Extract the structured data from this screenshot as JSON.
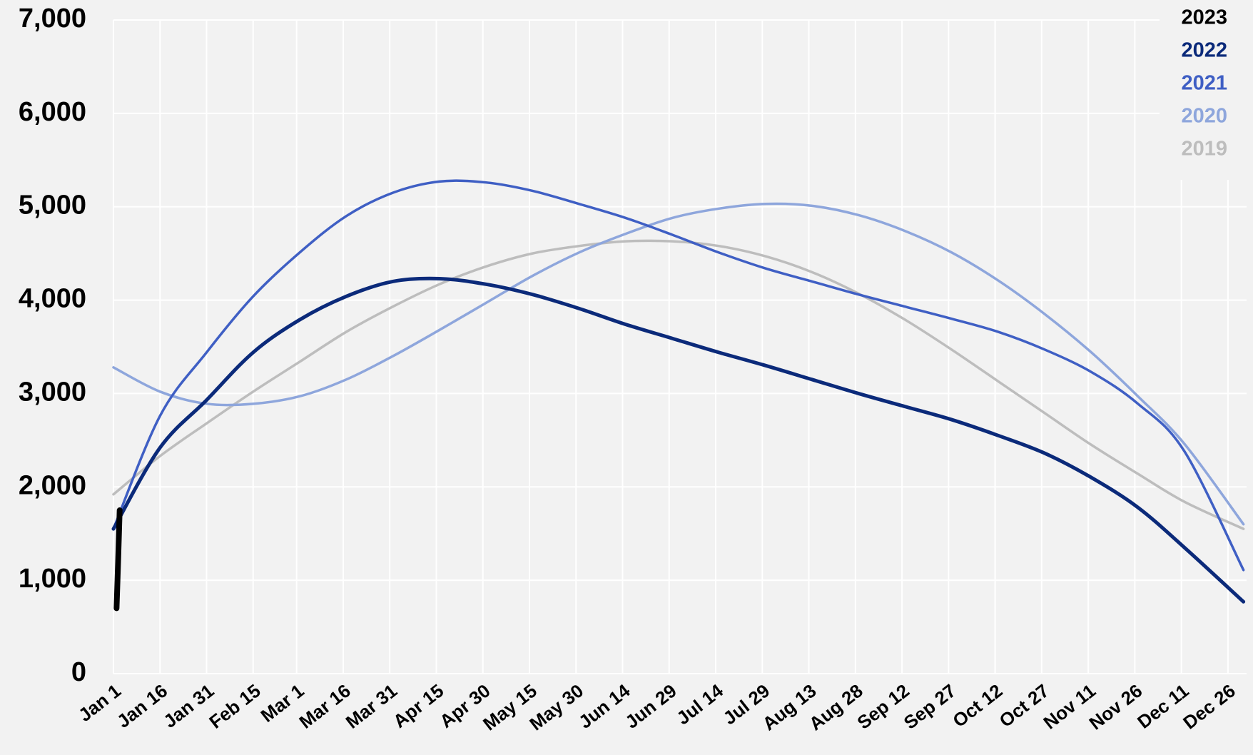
{
  "chart_data": {
    "type": "line",
    "xlim": [
      0,
      365
    ],
    "ylim": [
      0,
      7000
    ],
    "yticks": [
      0,
      {
        "value": 1000,
        "label": "1,000"
      },
      {
        "value": 2000,
        "label": "2,000"
      },
      {
        "value": 3000,
        "label": "3,000"
      },
      {
        "value": 4000,
        "label": "4,000"
      },
      {
        "value": 5000,
        "label": "5,000"
      },
      {
        "value": 6000,
        "label": "6,000"
      },
      {
        "value": 7000,
        "label": "7,000"
      }
    ],
    "xticks": [
      {
        "value": 0,
        "label": "Jan 1"
      },
      {
        "value": 15,
        "label": "Jan 16"
      },
      {
        "value": 30,
        "label": "Jan 31"
      },
      {
        "value": 45,
        "label": "Feb 15"
      },
      {
        "value": 59,
        "label": "Mar 1"
      },
      {
        "value": 74,
        "label": "Mar 16"
      },
      {
        "value": 89,
        "label": "Mar 31"
      },
      {
        "value": 104,
        "label": "Apr 15"
      },
      {
        "value": 119,
        "label": "Apr 30"
      },
      {
        "value": 134,
        "label": "May 15"
      },
      {
        "value": 149,
        "label": "May 30"
      },
      {
        "value": 164,
        "label": "Jun 14"
      },
      {
        "value": 179,
        "label": "Jun 29"
      },
      {
        "value": 194,
        "label": "Jul 14"
      },
      {
        "value": 209,
        "label": "Jul 29"
      },
      {
        "value": 224,
        "label": "Aug 13"
      },
      {
        "value": 239,
        "label": "Aug 28"
      },
      {
        "value": 254,
        "label": "Sep 12"
      },
      {
        "value": 269,
        "label": "Sep 27"
      },
      {
        "value": 284,
        "label": "Oct 12"
      },
      {
        "value": 299,
        "label": "Oct 27"
      },
      {
        "value": 314,
        "label": "Nov 11"
      },
      {
        "value": 329,
        "label": "Nov 26"
      },
      {
        "value": 344,
        "label": "Dec 11"
      },
      {
        "value": 359,
        "label": "Dec 26"
      }
    ],
    "grid": true,
    "legend": "top-right",
    "series": [
      {
        "name": "2023",
        "color": "#000000",
        "width": 8,
        "x": [
          1,
          1.5,
          2
        ],
        "values": [
          700,
          1200,
          1750
        ]
      },
      {
        "name": "2022",
        "color": "#0b2a7a",
        "width": 5,
        "x": [
          0,
          15,
          30,
          45,
          60,
          75,
          90,
          105,
          120,
          135,
          150,
          165,
          180,
          195,
          210,
          225,
          240,
          255,
          270,
          285,
          300,
          315,
          330,
          345,
          364
        ],
        "values": [
          1550,
          2420,
          2930,
          3440,
          3790,
          4040,
          4200,
          4230,
          4170,
          4060,
          3910,
          3740,
          3590,
          3440,
          3300,
          3150,
          3000,
          2860,
          2720,
          2550,
          2360,
          2100,
          1780,
          1350,
          770
        ]
      },
      {
        "name": "2021",
        "color": "#3f5fc4",
        "width": 3.5,
        "x": [
          0,
          15,
          30,
          45,
          60,
          75,
          90,
          105,
          120,
          135,
          150,
          165,
          180,
          195,
          210,
          225,
          240,
          255,
          270,
          285,
          300,
          315,
          330,
          345,
          364
        ],
        "values": [
          1550,
          2760,
          3440,
          4040,
          4510,
          4900,
          5150,
          5270,
          5260,
          5170,
          5030,
          4880,
          4700,
          4510,
          4340,
          4200,
          4060,
          3930,
          3800,
          3660,
          3470,
          3230,
          2890,
          2380,
          1110
        ]
      },
      {
        "name": "2020",
        "color": "#8ea6dc",
        "width": 3.5,
        "x": [
          0,
          15,
          30,
          45,
          60,
          75,
          90,
          105,
          120,
          135,
          150,
          165,
          180,
          195,
          210,
          225,
          240,
          255,
          270,
          285,
          300,
          315,
          330,
          345,
          364
        ],
        "values": [
          3280,
          3020,
          2890,
          2890,
          2970,
          3150,
          3400,
          3680,
          3970,
          4260,
          4510,
          4710,
          4880,
          4980,
          5030,
          5010,
          4910,
          4740,
          4510,
          4210,
          3850,
          3440,
          2970,
          2460,
          1600
        ]
      },
      {
        "name": "2019",
        "color": "#bdbdbd",
        "width": 3.5,
        "x": [
          0,
          15,
          30,
          45,
          60,
          75,
          90,
          105,
          120,
          135,
          150,
          165,
          180,
          195,
          210,
          225,
          240,
          255,
          270,
          285,
          300,
          315,
          330,
          345,
          364
        ],
        "values": [
          1920,
          2330,
          2680,
          3020,
          3340,
          3660,
          3930,
          4170,
          4360,
          4500,
          4580,
          4630,
          4630,
          4580,
          4470,
          4300,
          4070,
          3790,
          3470,
          3130,
          2790,
          2450,
          2140,
          1840,
          1550
        ]
      }
    ]
  }
}
